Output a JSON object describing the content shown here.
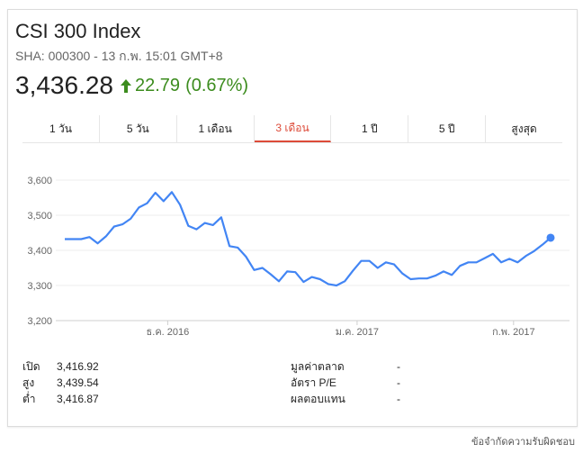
{
  "header": {
    "title": "CSI 300 Index",
    "subtitle": "SHA: 000300 - 13 ก.พ. 15:01 GMT+8",
    "price": "3,436.28",
    "change": "22.79",
    "change_pct": "(0.67%)",
    "change_color": "#3c8c1e",
    "change_icon": "arrow-up-icon"
  },
  "tabs": [
    {
      "label": "1 วัน",
      "active": false
    },
    {
      "label": "5 วัน",
      "active": false
    },
    {
      "label": "1 เดือน",
      "active": false
    },
    {
      "label": "3 เดือน",
      "active": true
    },
    {
      "label": "1 ปี",
      "active": false
    },
    {
      "label": "5 ปี",
      "active": false
    },
    {
      "label": "สูงสุด",
      "active": false
    }
  ],
  "chart_data": {
    "type": "line",
    "ylim": [
      3200,
      3600
    ],
    "yticks": [
      "3,600",
      "3,500",
      "3,400",
      "3,300",
      "3,200"
    ],
    "ytick_values": [
      3600,
      3500,
      3400,
      3300,
      3200
    ],
    "xticks": [
      {
        "label": "ธ.ค. 2016",
        "index": 12.5
      },
      {
        "label": "ม.ค. 2017",
        "index": 35.5
      },
      {
        "label": "ก.พ. 2017",
        "index": 54.5
      }
    ],
    "line_color": "#4285f4",
    "values": [
      3432,
      3432,
      3432,
      3438,
      3420,
      3440,
      3468,
      3474,
      3490,
      3522,
      3534,
      3564,
      3540,
      3566,
      3530,
      3470,
      3460,
      3478,
      3472,
      3494,
      3412,
      3408,
      3382,
      3344,
      3350,
      3332,
      3312,
      3340,
      3338,
      3310,
      3324,
      3318,
      3304,
      3300,
      3312,
      3342,
      3370,
      3370,
      3350,
      3366,
      3360,
      3334,
      3318,
      3320,
      3320,
      3328,
      3340,
      3330,
      3356,
      3366,
      3366,
      3378,
      3390,
      3366,
      3376,
      3366,
      3384,
      3398,
      3416,
      3436
    ]
  },
  "stats_left": [
    {
      "label": "เปิด",
      "value": "3,416.92"
    },
    {
      "label": "สูง",
      "value": "3,439.54"
    },
    {
      "label": "ต่ำ",
      "value": "3,416.87"
    }
  ],
  "stats_right": [
    {
      "label": "มูลค่าตลาด",
      "value": "-"
    },
    {
      "label": "อัตรา P/E",
      "value": "-"
    },
    {
      "label": "ผลตอบแทน",
      "value": "-"
    }
  ],
  "footer": "ข้อจำกัดความรับผิดชอบ"
}
